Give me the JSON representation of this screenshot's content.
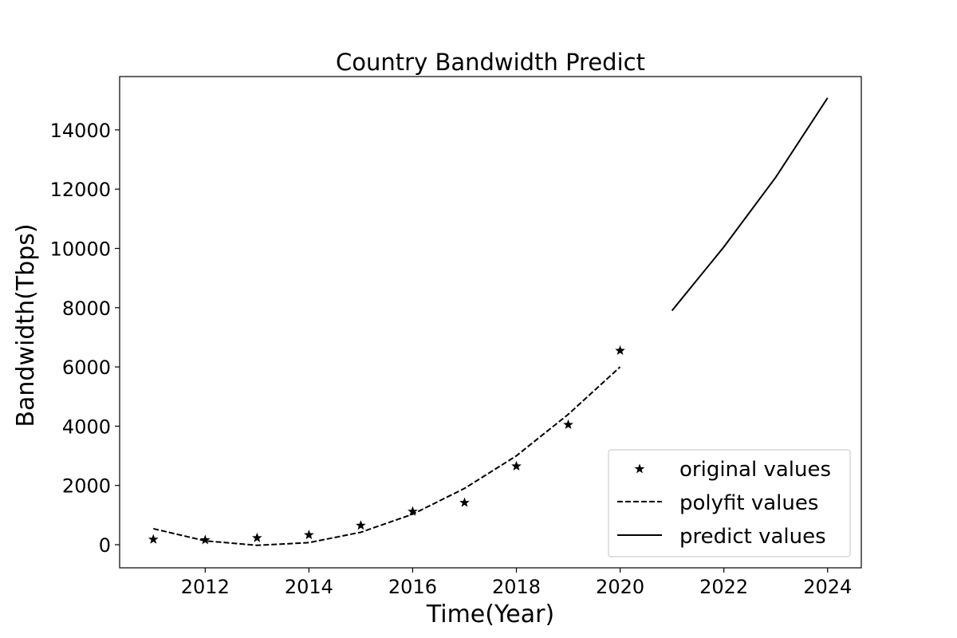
{
  "chart_data": {
    "type": "line",
    "title": "Country Bandwidth Predict",
    "xlabel": "Time(Year)",
    "ylabel": "Bandwidth(Tbps)",
    "xlim": [
      2010.35,
      2024.65
    ],
    "ylim": [
      -780,
      15800
    ],
    "xticks": [
      2012,
      2014,
      2016,
      2018,
      2020,
      2022,
      2024
    ],
    "yticks": [
      0,
      2000,
      4000,
      6000,
      8000,
      10000,
      12000,
      14000
    ],
    "grid": false,
    "legend_position": "lower-right",
    "series": [
      {
        "name": "original values",
        "style": "star-markers",
        "color": "#000000",
        "x": [
          2011,
          2012,
          2013,
          2014,
          2015,
          2016,
          2017,
          2018,
          2019,
          2020
        ],
        "y": [
          180,
          160,
          230,
          330,
          650,
          1120,
          1420,
          2650,
          4050,
          6550
        ]
      },
      {
        "name": "polyfit values",
        "style": "dashed-line",
        "color": "#000000",
        "x": [
          2011,
          2012,
          2013,
          2014,
          2015,
          2016,
          2017,
          2018,
          2019,
          2020
        ],
        "y": [
          540,
          130,
          -20,
          70,
          420,
          1030,
          1900,
          3000,
          4400,
          6000
        ]
      },
      {
        "name": "predict values",
        "style": "solid-line",
        "color": "#000000",
        "x": [
          2021,
          2022,
          2023,
          2024
        ],
        "y": [
          7900,
          10050,
          12400,
          15080
        ]
      }
    ]
  }
}
